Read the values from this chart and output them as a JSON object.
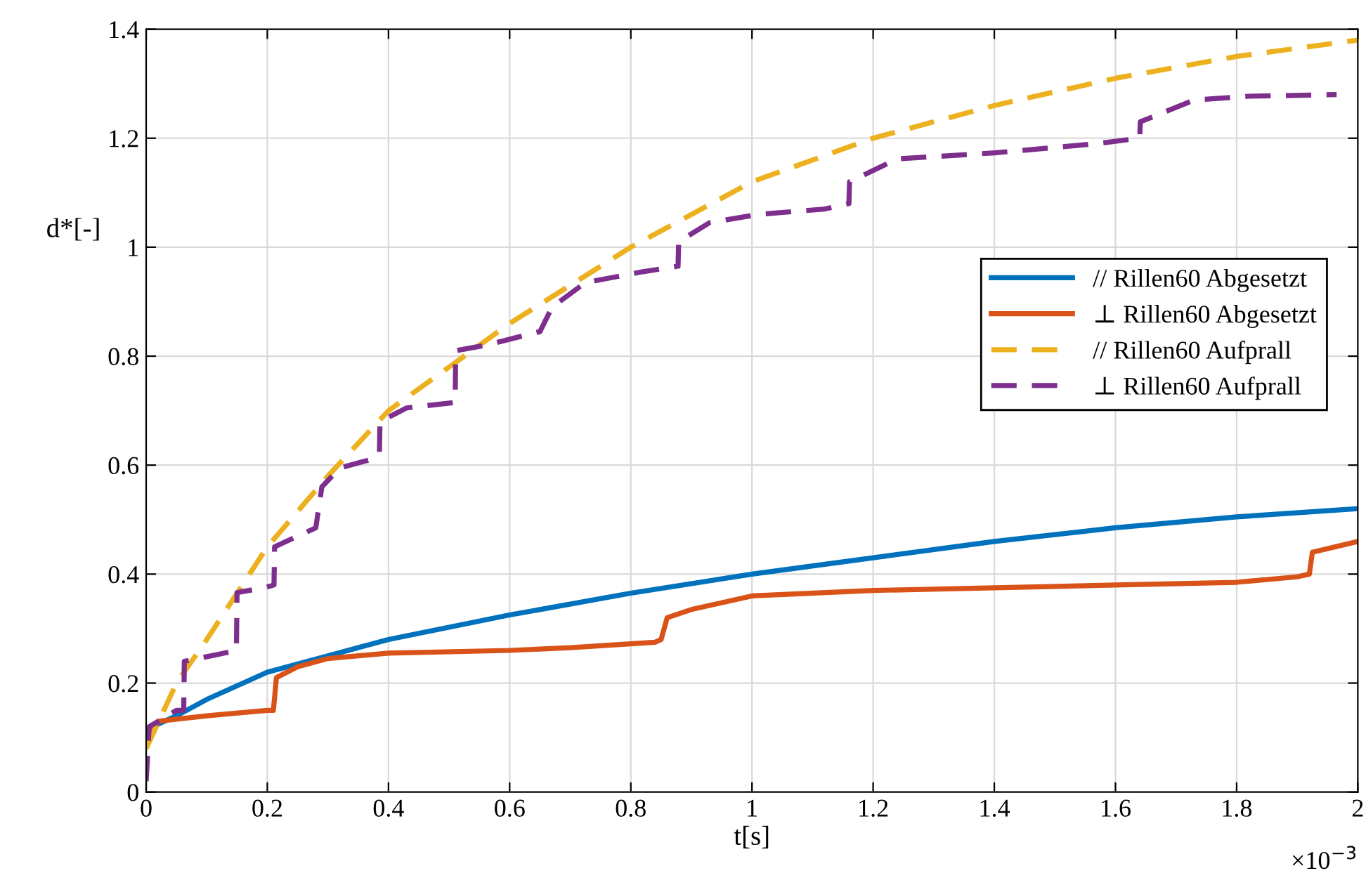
{
  "chart_data": {
    "type": "line",
    "xlabel": "t[s]",
    "ylabel": "d*[-]",
    "annotations": [
      "×10$^{−3}$"
    ],
    "xlim": [
      0,
      2
    ],
    "ylim": [
      0,
      1.4
    ],
    "xticks": [
      0,
      0.2,
      0.4,
      0.6,
      0.8,
      1,
      1.2,
      1.4,
      1.6,
      1.8,
      2
    ],
    "yticks": [
      0,
      0.2,
      0.4,
      0.6,
      0.8,
      1,
      1.2,
      1.4
    ],
    "grid": true,
    "legend": "right",
    "marker": "none",
    "series": [
      {
        "name": "// Rillen60 Abgesetzt",
        "color": "#0072bd",
        "line_style": "solid",
        "x": [
          0,
          0.01,
          0.05,
          0.1,
          0.2,
          0.3,
          0.4,
          0.6,
          0.8,
          1.0,
          1.2,
          1.4,
          1.6,
          1.8,
          2.0
        ],
        "values": [
          0.11,
          0.12,
          0.14,
          0.17,
          0.22,
          0.25,
          0.28,
          0.325,
          0.365,
          0.4,
          0.43,
          0.46,
          0.485,
          0.505,
          0.52
        ]
      },
      {
        "name": "⊥ Rillen60 Abgesetzt",
        "color": "#d95319",
        "line_style": "solid",
        "x": [
          0,
          0.02,
          0.1,
          0.2,
          0.21,
          0.215,
          0.25,
          0.3,
          0.4,
          0.6,
          0.7,
          0.84,
          0.85,
          0.86,
          0.9,
          1.0,
          1.2,
          1.4,
          1.6,
          1.8,
          1.9,
          1.92,
          1.925,
          2.0
        ],
        "values": [
          0.1,
          0.13,
          0.14,
          0.15,
          0.15,
          0.21,
          0.23,
          0.245,
          0.255,
          0.26,
          0.265,
          0.275,
          0.28,
          0.32,
          0.335,
          0.36,
          0.37,
          0.375,
          0.38,
          0.385,
          0.395,
          0.4,
          0.44,
          0.46
        ]
      },
      {
        "name": "// Rillen60 Aufprall",
        "color": "#edb120",
        "line_style": "dashed",
        "x": [
          0,
          0.05,
          0.1,
          0.2,
          0.3,
          0.4,
          0.5,
          0.6,
          0.7,
          0.8,
          0.9,
          1.0,
          1.2,
          1.4,
          1.6,
          1.8,
          2.0
        ],
        "values": [
          0.08,
          0.2,
          0.28,
          0.45,
          0.58,
          0.7,
          0.78,
          0.86,
          0.93,
          1.0,
          1.06,
          1.12,
          1.2,
          1.26,
          1.31,
          1.35,
          1.38
        ]
      },
      {
        "name": "⊥ Rillen60 Aufprall",
        "color": "#7e2f8e",
        "line_style": "dashed",
        "x": [
          0,
          0.005,
          0.05,
          0.062,
          0.063,
          0.12,
          0.149,
          0.15,
          0.195,
          0.211,
          0.212,
          0.28,
          0.29,
          0.32,
          0.37,
          0.385,
          0.386,
          0.43,
          0.47,
          0.51,
          0.511,
          0.56,
          0.65,
          0.67,
          0.725,
          0.82,
          0.878,
          0.879,
          0.93,
          1.01,
          1.12,
          1.16,
          1.161,
          1.24,
          1.4,
          1.57,
          1.64,
          1.641,
          1.73,
          1.82,
          1.965
        ],
        "values": [
          0.02,
          0.12,
          0.15,
          0.15,
          0.24,
          0.253,
          0.26,
          0.366,
          0.375,
          0.38,
          0.45,
          0.485,
          0.56,
          0.595,
          0.61,
          0.62,
          0.68,
          0.705,
          0.71,
          0.715,
          0.81,
          0.82,
          0.845,
          0.89,
          0.935,
          0.955,
          0.965,
          1.01,
          1.045,
          1.06,
          1.07,
          1.08,
          1.12,
          1.162,
          1.173,
          1.19,
          1.2,
          1.23,
          1.27,
          1.277,
          1.28
        ]
      }
    ]
  }
}
